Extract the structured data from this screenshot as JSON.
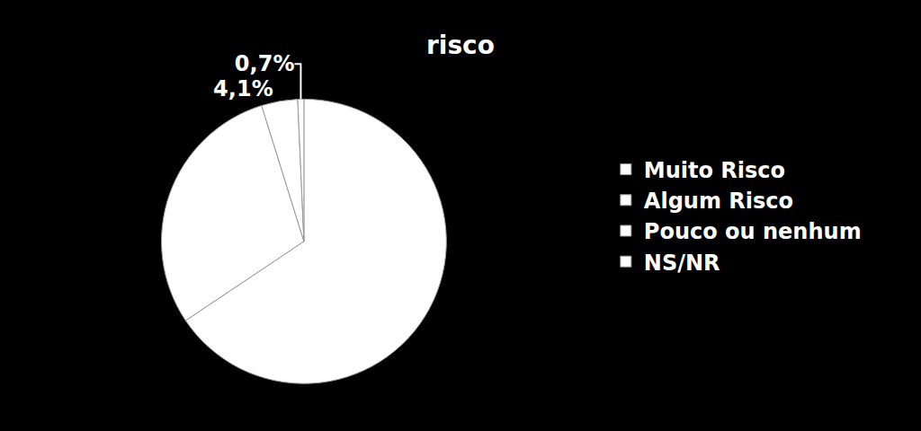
{
  "chart_data": {
    "type": "pie",
    "title": "risco",
    "categories": [
      "Muito Risco",
      "Algum Risco",
      "Pouco ou nenhum",
      "NS/NR"
    ],
    "values": [
      65.6,
      29.6,
      4.1,
      0.7
    ],
    "value_labels": [
      null,
      null,
      "4,1%",
      "0,7%"
    ],
    "colors": [
      "#ffffff",
      "#ffffff",
      "#ffffff",
      "#ffffff"
    ],
    "data_labels": true,
    "legend": "right"
  }
}
